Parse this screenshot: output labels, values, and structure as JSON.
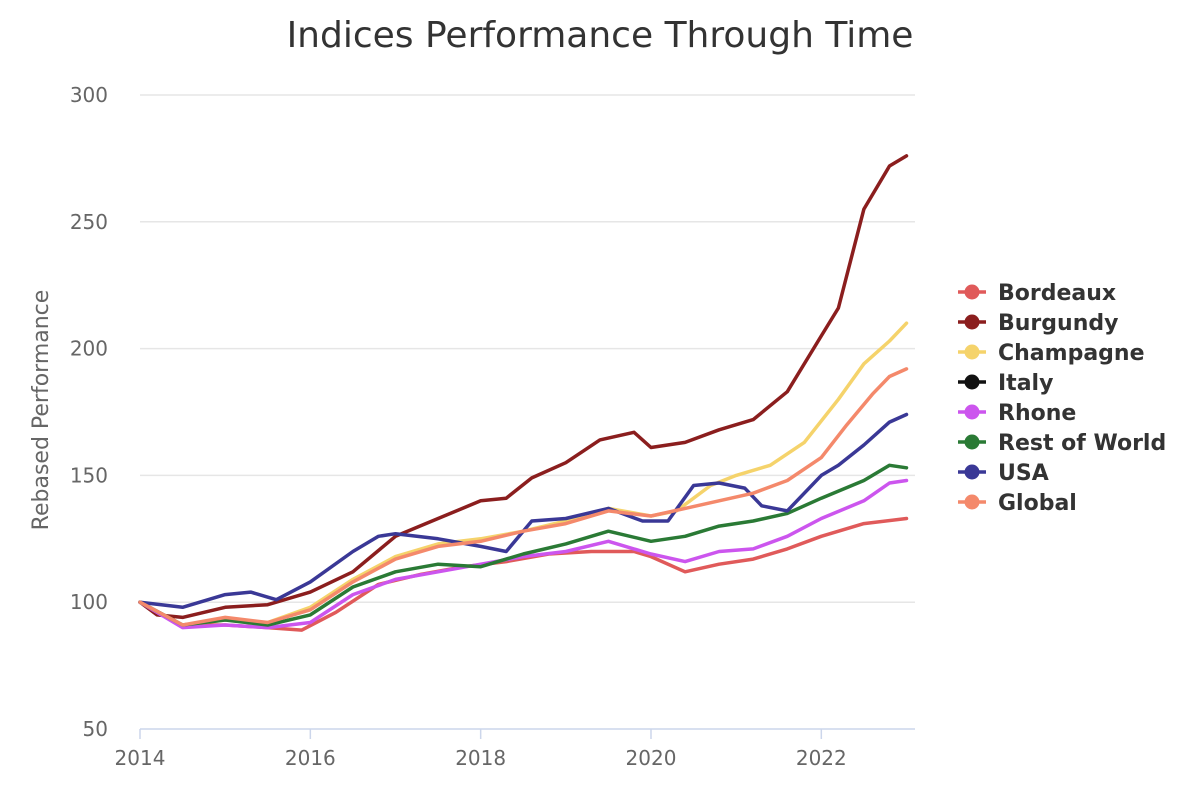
{
  "chart_data": {
    "type": "line",
    "title": "Indices Performance Through Time",
    "xlabel": "",
    "ylabel": "Rebased Performance",
    "xlim": [
      2014,
      2023.1
    ],
    "ylim": [
      50,
      300
    ],
    "x_ticks": [
      2014,
      2016,
      2018,
      2020,
      2022
    ],
    "y_ticks": [
      50,
      100,
      150,
      200,
      250,
      300
    ],
    "grid": true,
    "legend_position": "right",
    "series": [
      {
        "name": "Bordeaux",
        "color": "#e05a5a",
        "x": [
          2014,
          2014.5,
          2015,
          2015.5,
          2015.9,
          2016.3,
          2016.8,
          2017.3,
          2017.8,
          2018.3,
          2018.8,
          2019.3,
          2019.8,
          2020.0,
          2020.4,
          2020.8,
          2021.2,
          2021.6,
          2022.0,
          2022.5,
          2023.0
        ],
        "values": [
          100,
          91,
          91,
          90,
          89,
          96,
          107,
          111,
          114,
          116,
          119,
          120,
          120,
          118,
          112,
          115,
          117,
          121,
          126,
          131,
          133
        ]
      },
      {
        "name": "Burgundy",
        "color": "#8b1e1e",
        "x": [
          2014,
          2014.2,
          2014.5,
          2015,
          2015.5,
          2016,
          2016.5,
          2017,
          2017.5,
          2018,
          2018.3,
          2018.6,
          2019,
          2019.4,
          2019.8,
          2020,
          2020.4,
          2020.8,
          2021.2,
          2021.6,
          2022.0,
          2022.2,
          2022.5,
          2022.8,
          2023.0
        ],
        "values": [
          100,
          95,
          94,
          98,
          99,
          104,
          112,
          126,
          133,
          140,
          141,
          149,
          155,
          164,
          167,
          161,
          163,
          168,
          172,
          183,
          205,
          216,
          255,
          272,
          276
        ]
      },
      {
        "name": "Champagne",
        "color": "#f5d36b",
        "x": [
          2014,
          2014.5,
          2015,
          2015.5,
          2016,
          2016.5,
          2017,
          2017.5,
          2018,
          2018.5,
          2019,
          2019.5,
          2020,
          2020.3,
          2020.7,
          2021.0,
          2021.4,
          2021.8,
          2022.2,
          2022.5,
          2022.8,
          2023.0
        ],
        "values": [
          100,
          91,
          93,
          92,
          98,
          109,
          118,
          123,
          125,
          128,
          132,
          137,
          134,
          136,
          146,
          150,
          154,
          163,
          180,
          194,
          203,
          210
        ]
      },
      {
        "name": "Italy",
        "color": "#111111",
        "x": [],
        "values": []
      },
      {
        "name": "Rhone",
        "color": "#cc55ee",
        "x": [
          2014,
          2014.5,
          2015,
          2015.5,
          2016,
          2016.5,
          2017,
          2017.5,
          2018,
          2018.5,
          2019,
          2019.5,
          2020,
          2020.4,
          2020.8,
          2021.2,
          2021.6,
          2022.0,
          2022.5,
          2022.8,
          2023.0
        ],
        "values": [
          100,
          90,
          91,
          90,
          92,
          103,
          109,
          112,
          115,
          118,
          120,
          124,
          119,
          116,
          120,
          121,
          126,
          133,
          140,
          147,
          148
        ]
      },
      {
        "name": "Rest of World",
        "color": "#2a7a35",
        "x": [
          2014,
          2014.5,
          2015,
          2015.5,
          2016,
          2016.5,
          2017,
          2017.5,
          2018,
          2018.5,
          2019,
          2019.5,
          2020,
          2020.4,
          2020.8,
          2021.2,
          2021.6,
          2022.0,
          2022.5,
          2022.8,
          2023.0
        ],
        "values": [
          100,
          91,
          93,
          91,
          95,
          106,
          112,
          115,
          114,
          119,
          123,
          128,
          124,
          126,
          130,
          132,
          135,
          141,
          148,
          154,
          153
        ]
      },
      {
        "name": "USA",
        "color": "#3a3896",
        "x": [
          2014,
          2014.5,
          2015,
          2015.3,
          2015.6,
          2016,
          2016.5,
          2016.8,
          2017,
          2017.5,
          2018,
          2018.3,
          2018.6,
          2019,
          2019.5,
          2019.9,
          2020.2,
          2020.5,
          2020.8,
          2021.1,
          2021.3,
          2021.6,
          2022.0,
          2022.2,
          2022.5,
          2022.8,
          2023.0
        ],
        "values": [
          100,
          98,
          103,
          104,
          101,
          108,
          120,
          126,
          127,
          125,
          122,
          120,
          132,
          133,
          137,
          132,
          132,
          146,
          147,
          145,
          138,
          136,
          150,
          154,
          162,
          171,
          174
        ]
      },
      {
        "name": "Global",
        "color": "#f4896b",
        "x": [
          2014,
          2014.5,
          2015,
          2015.5,
          2016,
          2016.5,
          2017,
          2017.5,
          2018,
          2018.5,
          2019,
          2019.5,
          2020,
          2020.4,
          2020.8,
          2021.2,
          2021.6,
          2022.0,
          2022.3,
          2022.6,
          2022.8,
          2023.0
        ],
        "values": [
          100,
          91,
          94,
          92,
          97,
          108,
          117,
          122,
          124,
          128,
          131,
          136,
          134,
          137,
          140,
          143,
          148,
          157,
          170,
          182,
          189,
          192
        ]
      }
    ]
  }
}
